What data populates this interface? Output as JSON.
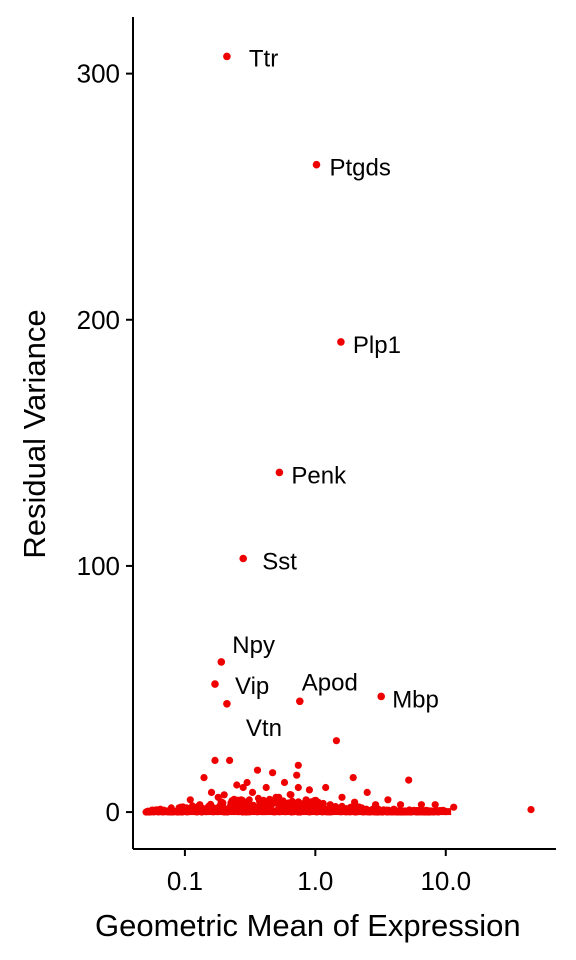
{
  "colors": {
    "points": "#ee0000",
    "axis": "#000000",
    "background": "#ffffff"
  },
  "chart_data": {
    "type": "scatter",
    "title": "",
    "xlabel": "Geometric Mean of Expression",
    "ylabel": "Residual Variance",
    "x_scale": "log10",
    "xlim": [
      0.04,
      70
    ],
    "ylim": [
      -15,
      323
    ],
    "xticks": [
      0.1,
      1.0,
      10.0
    ],
    "xtick_labels": [
      "0.1",
      "1.0",
      "10.0"
    ],
    "yticks": [
      0,
      100,
      200,
      300
    ],
    "ytick_labels": [
      "0",
      "100",
      "200",
      "300"
    ],
    "labeled_points": [
      {
        "gene": "Ttr",
        "x": 0.21,
        "y": 307
      },
      {
        "gene": "Ptgds",
        "x": 1.02,
        "y": 263
      },
      {
        "gene": "Plp1",
        "x": 1.57,
        "y": 191
      },
      {
        "gene": "Penk",
        "x": 0.53,
        "y": 138
      },
      {
        "gene": "Sst",
        "x": 0.28,
        "y": 103
      },
      {
        "gene": "Npy",
        "x": 0.19,
        "y": 61
      },
      {
        "gene": "Vip",
        "x": 0.17,
        "y": 52
      },
      {
        "gene": "Vtn",
        "x": 0.21,
        "y": 44
      },
      {
        "gene": "Apod",
        "x": 0.76,
        "y": 45
      },
      {
        "gene": "Mbp",
        "x": 3.2,
        "y": 47
      }
    ],
    "other_points": [
      {
        "x": 1.45,
        "y": 29
      },
      {
        "x": 0.17,
        "y": 21
      },
      {
        "x": 0.22,
        "y": 21
      },
      {
        "x": 0.74,
        "y": 19
      },
      {
        "x": 0.36,
        "y": 17
      },
      {
        "x": 0.47,
        "y": 16
      },
      {
        "x": 0.72,
        "y": 15
      },
      {
        "x": 0.14,
        "y": 14
      },
      {
        "x": 1.95,
        "y": 14
      },
      {
        "x": 5.2,
        "y": 13
      },
      {
        "x": 0.3,
        "y": 12
      },
      {
        "x": 0.58,
        "y": 12
      },
      {
        "x": 0.25,
        "y": 11
      },
      {
        "x": 1.2,
        "y": 10
      },
      {
        "x": 0.42,
        "y": 10
      },
      {
        "x": 0.9,
        "y": 9
      },
      {
        "x": 0.16,
        "y": 8
      },
      {
        "x": 2.5,
        "y": 8
      },
      {
        "x": 0.33,
        "y": 8
      },
      {
        "x": 0.65,
        "y": 7
      },
      {
        "x": 0.2,
        "y": 7
      },
      {
        "x": 1.6,
        "y": 6
      },
      {
        "x": 3.6,
        "y": 5
      },
      {
        "x": 0.5,
        "y": 6
      },
      {
        "x": 0.11,
        "y": 5
      },
      {
        "x": 0.27,
        "y": 5
      },
      {
        "x": 0.85,
        "y": 5
      },
      {
        "x": 2.0,
        "y": 4
      },
      {
        "x": 4.5,
        "y": 3
      },
      {
        "x": 6.5,
        "y": 3
      },
      {
        "x": 8.3,
        "y": 3
      },
      {
        "x": 11.5,
        "y": 2
      },
      {
        "x": 45,
        "y": 1
      },
      {
        "x": 0.13,
        "y": 3
      },
      {
        "x": 0.38,
        "y": 4
      },
      {
        "x": 1.05,
        "y": 4
      },
      {
        "x": 0.23,
        "y": 4
      },
      {
        "x": 0.62,
        "y": 3
      },
      {
        "x": 1.3,
        "y": 3
      },
      {
        "x": 2.9,
        "y": 3
      },
      {
        "x": 0.093,
        "y": 2
      },
      {
        "x": 0.44,
        "y": 3
      },
      {
        "x": 0.74,
        "y": 10
      },
      {
        "x": 0.28,
        "y": 10
      },
      {
        "x": 0.18,
        "y": 6
      }
    ]
  }
}
